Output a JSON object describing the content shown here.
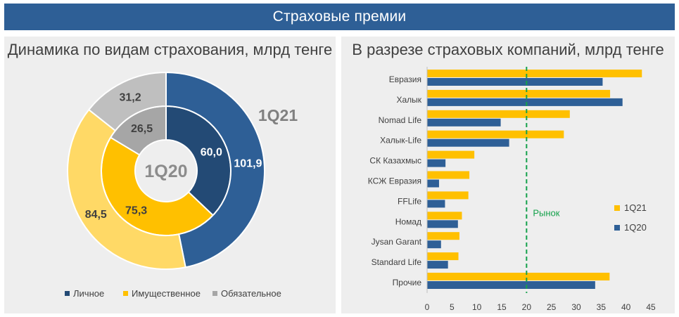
{
  "banner": {
    "title": "Страховые премии"
  },
  "left": {
    "title": "Динамика по видам страхования, млрд тенге"
  },
  "right": {
    "title": "В разрезе страховых компаний, млрд тенге"
  },
  "chart_data": [
    {
      "type": "pie",
      "variant": "double-donut",
      "title": "Динамика по видам страхования, млрд тенге",
      "inner_ring_label": "1Q20",
      "outer_ring_label": "1Q21",
      "categories": [
        "Личное",
        "Имущественное",
        "Обязательное"
      ],
      "colors": [
        "#2e5f96",
        "#ffc000",
        "#a6a6a6"
      ],
      "inner_colors": [
        "#234a75",
        "#ffc000",
        "#a6a6a6"
      ],
      "outer_colors": [
        "#2e5f96",
        "#ffd966",
        "#bfbfbf"
      ],
      "series": [
        {
          "name": "1Q20",
          "values": [
            60.0,
            75.3,
            26.5
          ],
          "labels": [
            "60,0",
            "75,3",
            "26,5"
          ]
        },
        {
          "name": "1Q21",
          "values": [
            101.9,
            84.5,
            31.2
          ],
          "labels": [
            "101,9",
            "84,5",
            "31,2"
          ]
        }
      ],
      "legend_position": "bottom"
    },
    {
      "type": "bar",
      "orientation": "horizontal",
      "title": "В разрезе страховых компаний, млрд тенге",
      "categories": [
        "Евразия",
        "Халык",
        "Nomad Life",
        "Халык-Life",
        "СК Казахмыс",
        "КСЖ Евразия",
        "FFLife",
        "Номад",
        "Jysan Garant",
        "Standard Life",
        "Прочие"
      ],
      "series": [
        {
          "name": "1Q21",
          "color": "#ffc000",
          "values": [
            43.2,
            36.8,
            28.7,
            27.5,
            9.5,
            8.5,
            8.3,
            7.0,
            6.5,
            6.3,
            36.7
          ]
        },
        {
          "name": "1Q20",
          "color": "#2e5f96",
          "values": [
            35.3,
            39.3,
            14.8,
            16.5,
            3.7,
            2.4,
            3.6,
            6.2,
            2.8,
            4.2,
            33.8
          ]
        }
      ],
      "xlim": [
        0,
        45
      ],
      "xticks": [
        "0",
        "5",
        "10",
        "15",
        "20",
        "25",
        "30",
        "35",
        "40",
        "45"
      ],
      "reference_line": {
        "value": 20,
        "label": "Рынок",
        "color": "#14a14b"
      },
      "legend_position": "right"
    }
  ]
}
